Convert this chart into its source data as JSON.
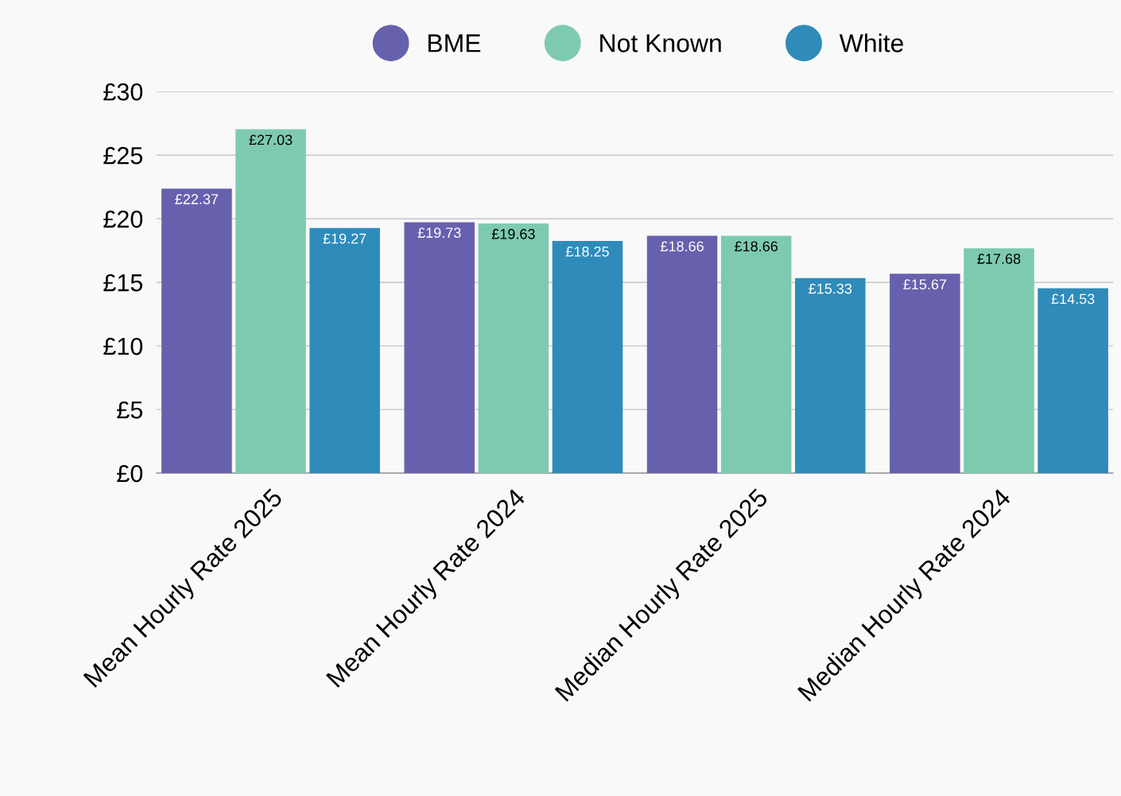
{
  "chart_data": {
    "type": "bar",
    "categories": [
      "Mean Hourly Rate 2025",
      "Mean Hourly Rate 2024",
      "Median Hourly Rate 2025",
      "Median Hourly Rate 2024"
    ],
    "series": [
      {
        "name": "BME",
        "color": "#6761ad",
        "values": [
          22.37,
          19.73,
          18.66,
          15.67
        ],
        "value_labels": [
          "£22.37",
          "£19.73",
          "£18.66",
          "£15.67"
        ]
      },
      {
        "name": "Not Known",
        "color": "#7ecab1",
        "values": [
          27.03,
          19.63,
          18.66,
          17.68
        ],
        "value_labels": [
          "£27.03",
          "£19.63",
          "£18.66",
          "£17.68"
        ]
      },
      {
        "name": "White",
        "color": "#2e8bba",
        "values": [
          19.27,
          18.25,
          15.33,
          14.53
        ],
        "value_labels": [
          "£19.27",
          "£18.25",
          "£15.33",
          "£14.53"
        ]
      }
    ],
    "ylim": [
      0,
      30
    ],
    "yticks": [
      {
        "value": 0,
        "label": "£0"
      },
      {
        "value": 5,
        "label": "£5"
      },
      {
        "value": 10,
        "label": "£10"
      },
      {
        "value": 15,
        "label": "£15"
      },
      {
        "value": 20,
        "label": "£20"
      },
      {
        "value": 25,
        "label": "£25"
      },
      {
        "value": 30,
        "label": "£30"
      }
    ],
    "grid": "y",
    "legend": "top"
  }
}
